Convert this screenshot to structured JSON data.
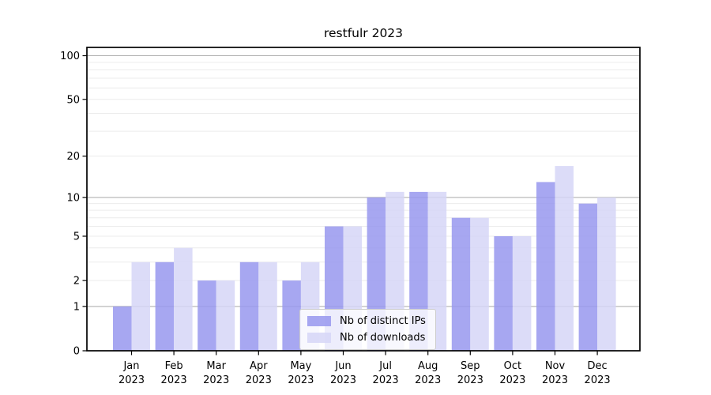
{
  "chart_data": {
    "type": "bar",
    "title": "restfulr 2023",
    "categories": [
      "Jan",
      "Feb",
      "Mar",
      "Apr",
      "May",
      "Jun",
      "Jul",
      "Aug",
      "Sep",
      "Oct",
      "Nov",
      "Dec"
    ],
    "category_year": "2023",
    "series": [
      {
        "name": "Nb of distinct IPs",
        "color": "#9898ef",
        "values": [
          1,
          3,
          2,
          3,
          2,
          6,
          10,
          11,
          7,
          5,
          13,
          9
        ]
      },
      {
        "name": "Nb of downloads",
        "color": "#d6d6f7",
        "values": [
          3,
          4,
          2,
          3,
          3,
          6,
          11,
          11,
          7,
          5,
          17,
          10
        ]
      }
    ],
    "bar_fill_opacity": 0.85,
    "yscale": "log1p",
    "ylim": [
      0,
      114
    ],
    "yticks": [
      0,
      1,
      2,
      5,
      10,
      20,
      50,
      100
    ],
    "ytick_labels": [
      "0",
      "1",
      "2",
      "5",
      "10",
      "20",
      "50",
      "100"
    ],
    "grid_major": [
      1,
      10,
      100
    ],
    "grid_minor": [
      2,
      3,
      4,
      5,
      6,
      7,
      8,
      9,
      20,
      30,
      40,
      50,
      60,
      70,
      80,
      90
    ],
    "grid": true,
    "legend_position": "lower center",
    "colors": {
      "background": "#ffffff",
      "axis": "#000000",
      "grid_major": "#b0b0b0",
      "grid_minor": "#ececec",
      "legend_border": "#cccccc",
      "legend_background": "rgba(255,255,255,0.8)"
    }
  }
}
